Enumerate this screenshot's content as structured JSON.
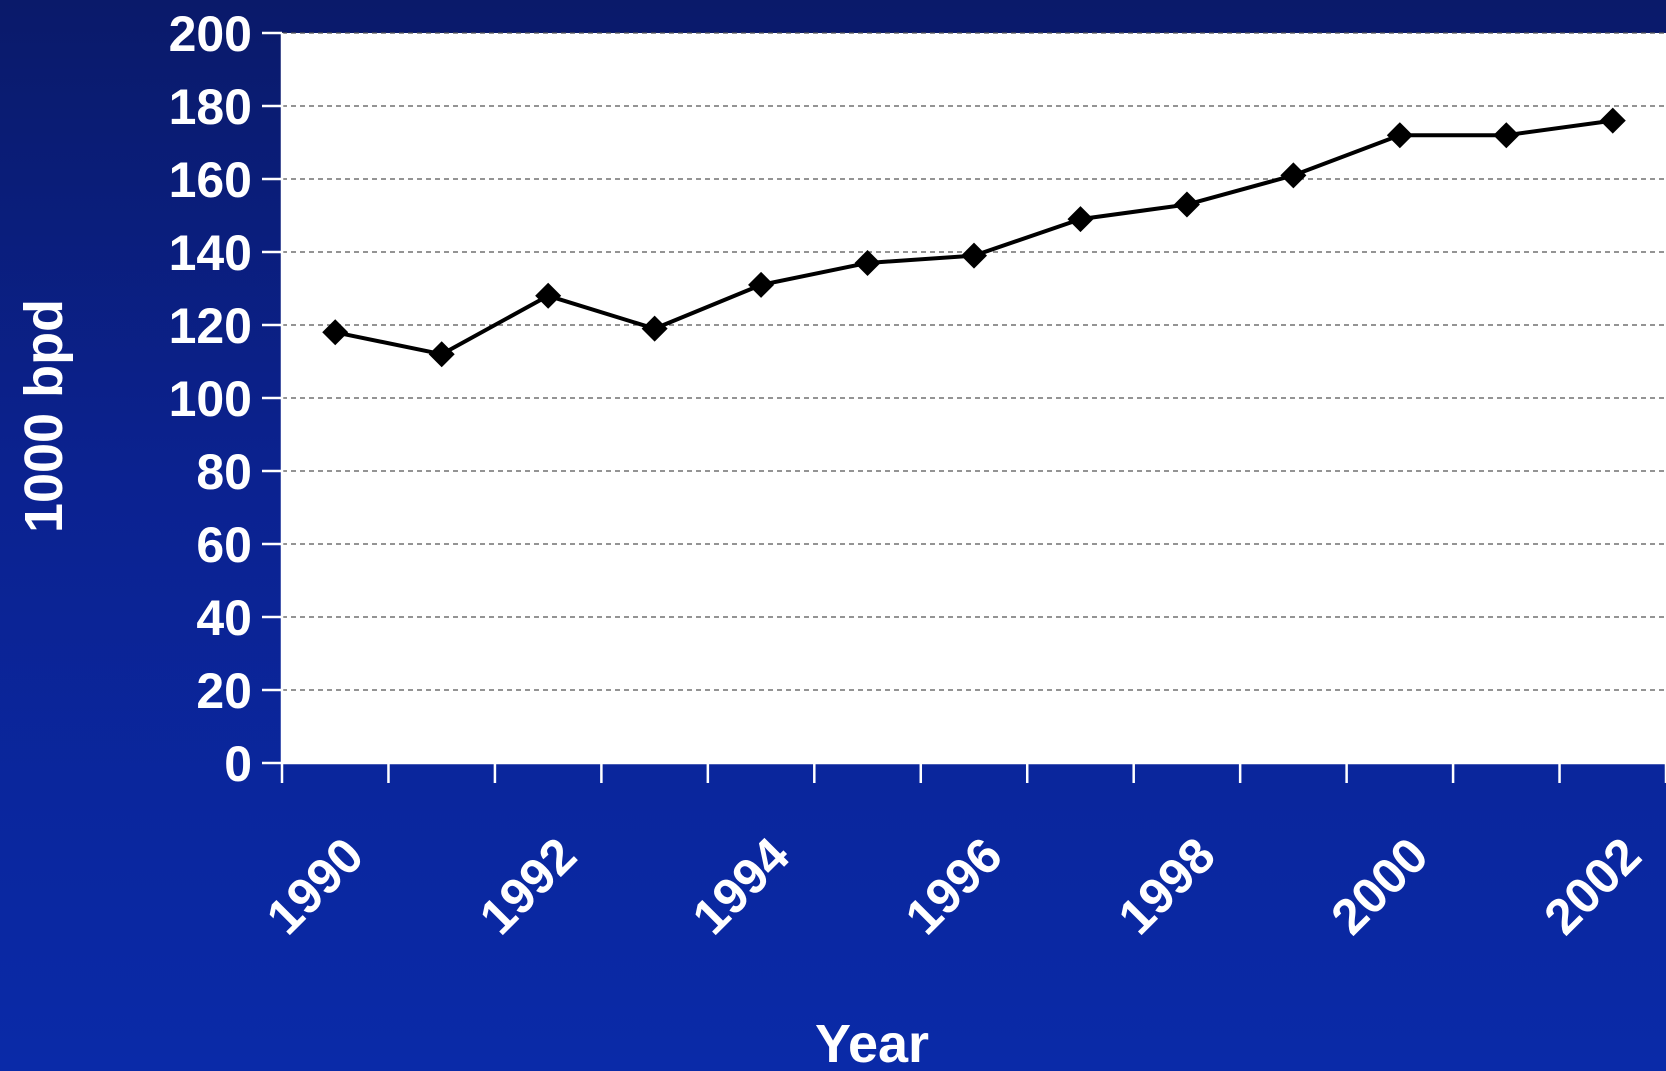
{
  "chart_data": {
    "type": "line",
    "title": "",
    "xlabel": "Year",
    "ylabel": "1000 bpd",
    "x": [
      1990,
      1991,
      1992,
      1993,
      1994,
      1995,
      1996,
      1997,
      1998,
      1999,
      2000,
      2001,
      2002
    ],
    "x_tick_labels": [
      "1990",
      "1992",
      "1994",
      "1996",
      "1998",
      "2000",
      "2002"
    ],
    "y_tick_labels": [
      "0",
      "20",
      "40",
      "60",
      "80",
      "100",
      "120",
      "140",
      "160",
      "180",
      "200"
    ],
    "series": [
      {
        "values": [
          118,
          112,
          128,
          119,
          131,
          137,
          139,
          149,
          153,
          161,
          172,
          172,
          176
        ]
      }
    ],
    "ylim": [
      0,
      200
    ],
    "grid": "horizontal dashed",
    "colors": {
      "line": "#000000",
      "marker": "#000000",
      "plot_background": "#ffffff",
      "page_background": "#0b2290",
      "text": "#ffffff"
    },
    "marker": "diamond"
  }
}
